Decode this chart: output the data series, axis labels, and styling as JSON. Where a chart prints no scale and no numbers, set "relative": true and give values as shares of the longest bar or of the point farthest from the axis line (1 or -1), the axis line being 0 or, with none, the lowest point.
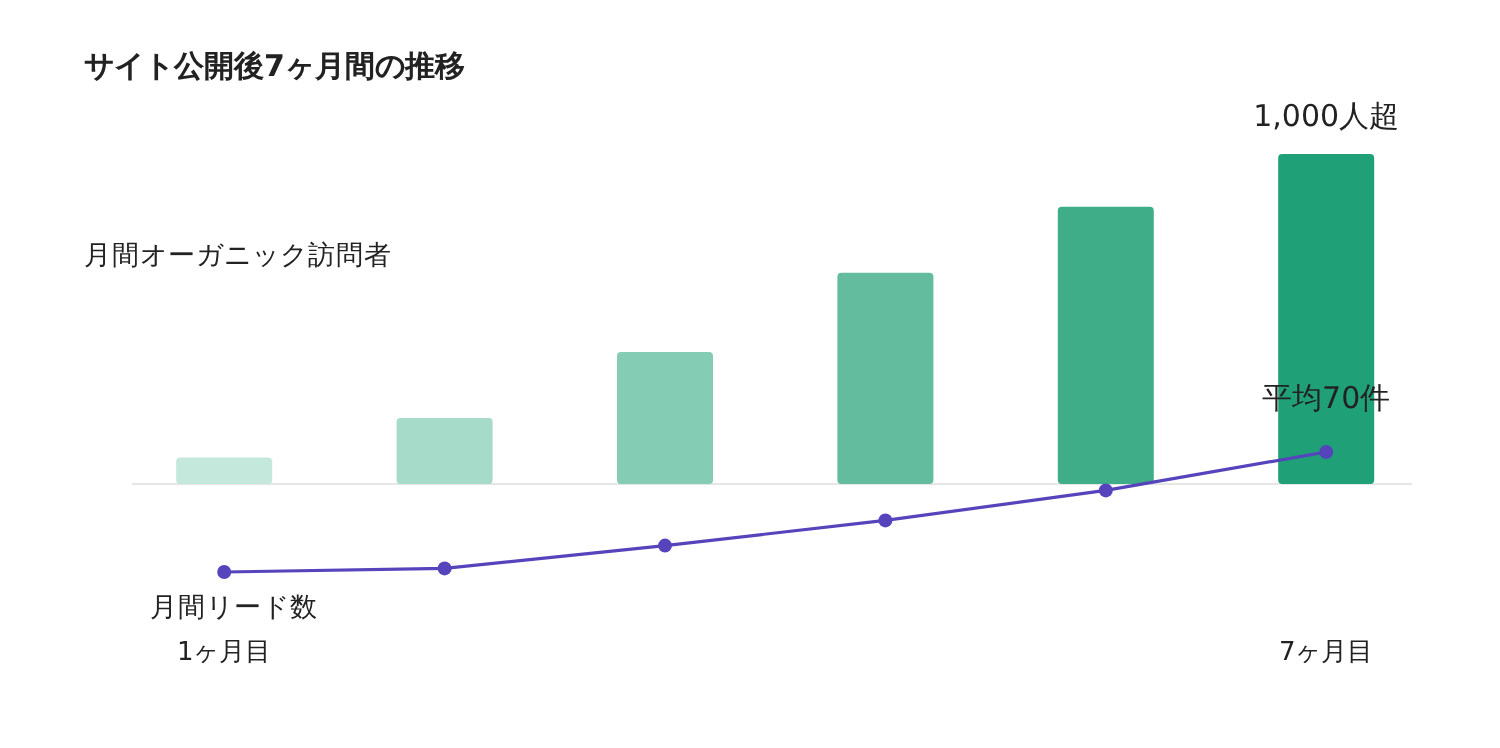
{
  "chart_data": [
    {
      "type": "bar",
      "title": "サイト公開後7ヶ月間の推移",
      "ylabel": "月間オーガニック訪問者",
      "categories": [
        null,
        null,
        null,
        null,
        null,
        null
      ],
      "values": [
        0.08,
        0.2,
        0.4,
        0.64,
        0.84,
        1
      ],
      "colors": [
        "#c5e8dc",
        "#a6dac9",
        "#84ccb3",
        "#62bc9d",
        "#3fae88",
        "#1fa077"
      ],
      "relative": true,
      "annotations": [
        {
          "text": "1,000人超",
          "y": 1
        }
      ]
    },
    {
      "type": "line",
      "categories": [
        "1ヶ月目",
        null,
        null,
        null,
        null,
        "7ヶ月目"
      ],
      "values": [
        0,
        0.03,
        0.22,
        0.43,
        0.68,
        1
      ],
      "color": "#5544bb",
      "marker": "circle",
      "relative": true,
      "annotations": [
        "月間リード数",
        {
          "text": "平均70件",
          "x": "7ヶ月目",
          "y": 1
        }
      ]
    }
  ]
}
